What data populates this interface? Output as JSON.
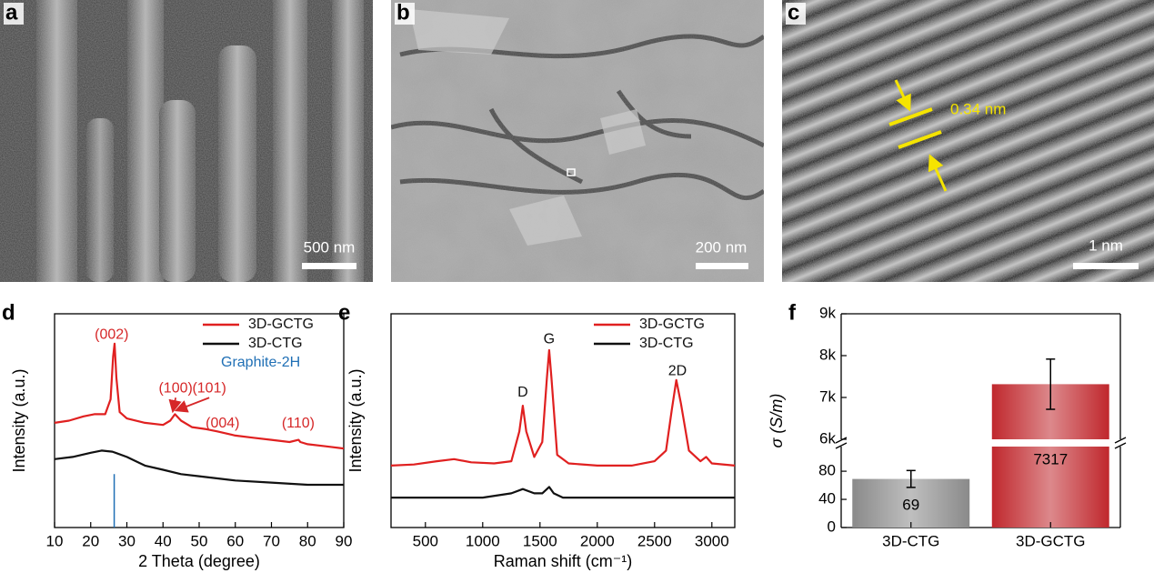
{
  "panels": [
    {
      "label": "a",
      "scale_bar": "500 nm"
    },
    {
      "label": "b",
      "scale_bar": "200 nm"
    },
    {
      "label": "c",
      "scale_bar": "1 nm",
      "annotation": "0.34 nm"
    }
  ],
  "chart_data": [
    {
      "type": "line",
      "panel_label": "d",
      "xlabel": "2 Theta (degree)",
      "ylabel": "Intensity (a.u.)",
      "xlim": [
        10,
        90
      ],
      "xticks": [
        10,
        20,
        30,
        40,
        50,
        60,
        70,
        80,
        90
      ],
      "ylim": [
        0,
        100
      ],
      "legend": "upper right",
      "annotation_color": "#d62728",
      "series": [
        {
          "name": "3D-GCTG",
          "color": "#e02020",
          "x": [
            10,
            14,
            18,
            21,
            24,
            25.5,
            26.2,
            26.6,
            27.1,
            28,
            30,
            35,
            40,
            42,
            43.3,
            45,
            48,
            52,
            55,
            60,
            65,
            70,
            75,
            77.5,
            78,
            80,
            85,
            90
          ],
          "values": [
            49,
            50,
            52,
            53,
            53,
            60,
            80,
            86,
            70,
            54,
            51,
            49,
            48,
            50,
            53,
            50,
            47,
            46,
            45,
            43,
            42,
            41,
            40,
            41,
            40,
            39,
            38,
            37
          ]
        },
        {
          "name": "3D-CTG",
          "color": "#111111",
          "x": [
            10,
            15,
            20,
            23,
            26,
            30,
            35,
            40,
            45,
            50,
            60,
            70,
            80,
            90
          ],
          "values": [
            32,
            33,
            35,
            36,
            35.5,
            33,
            29,
            27,
            25,
            24,
            22,
            21,
            20,
            20
          ]
        },
        {
          "name": "Graphite-2H",
          "color": "#1f6fb5",
          "style": "stick",
          "x": [
            26.5
          ],
          "values": [
            25
          ]
        }
      ],
      "annotations": [
        {
          "text": "(002)",
          "x": 25.8,
          "y": 90
        },
        {
          "text": "(100)",
          "x": 43.5,
          "y": 65,
          "arrow": [
            42.8,
            55
          ]
        },
        {
          "text": "(101)",
          "x": 52.8,
          "y": 65,
          "arrow": [
            44,
            55
          ]
        },
        {
          "text": "(004)",
          "x": 56.5,
          "y": 48.5
        },
        {
          "text": "(110)",
          "x": 77.4,
          "y": 48.5
        }
      ]
    },
    {
      "type": "line",
      "panel_label": "e",
      "xlabel": "Raman shift (cm⁻¹)",
      "ylabel": "Intensity (a.u.)",
      "xlim": [
        200,
        3200
      ],
      "xticks": [
        500,
        1000,
        1500,
        2000,
        2500,
        3000
      ],
      "ylim": [
        0,
        100
      ],
      "legend": "upper right",
      "annotation_color": "#111111",
      "series": [
        {
          "name": "3D-GCTG",
          "color": "#e02020",
          "x": [
            200,
            400,
            600,
            750,
            900,
            1100,
            1250,
            1320,
            1350,
            1380,
            1450,
            1520,
            1560,
            1580,
            1600,
            1650,
            1750,
            2000,
            2300,
            2500,
            2600,
            2650,
            2690,
            2730,
            2800,
            2900,
            2950,
            3000,
            3200
          ],
          "values": [
            29,
            29.5,
            31,
            32,
            30.5,
            30,
            31,
            45,
            57,
            45,
            33,
            40,
            70,
            83,
            70,
            34,
            30,
            29,
            29,
            31,
            36,
            55,
            69,
            58,
            36,
            31,
            33,
            30,
            29
          ]
        },
        {
          "name": "3D-CTG",
          "color": "#111111",
          "x": [
            200,
            1000,
            1250,
            1350,
            1450,
            1520,
            1580,
            1620,
            1700,
            3200
          ],
          "values": [
            14,
            14,
            16,
            18,
            16,
            16,
            19,
            16,
            14,
            14
          ]
        }
      ],
      "annotations": [
        {
          "text": "D",
          "x": 1350,
          "y": 63
        },
        {
          "text": "G",
          "x": 1580,
          "y": 88
        },
        {
          "text": "2D",
          "x": 2700,
          "y": 73
        }
      ]
    },
    {
      "type": "bar",
      "panel_label": "f",
      "ylabel": "σ (S/m)",
      "categories": [
        "3D-CTG",
        "3D-GCTG"
      ],
      "values": [
        69,
        7317
      ],
      "errors": [
        12,
        600
      ],
      "colors": [
        "#8a8a8a",
        "#c0282d"
      ],
      "y_segments": [
        {
          "ylim": [
            0,
            115
          ],
          "yticks": [
            0,
            40,
            80
          ]
        },
        {
          "ylim": [
            6000,
            9000
          ],
          "yticks": [
            {
              "value": 6000,
              "label": "6k"
            },
            {
              "value": 7000,
              "label": "7k"
            },
            {
              "value": 8000,
              "label": "8k"
            },
            {
              "value": 9000,
              "label": "9k"
            }
          ]
        }
      ]
    }
  ]
}
